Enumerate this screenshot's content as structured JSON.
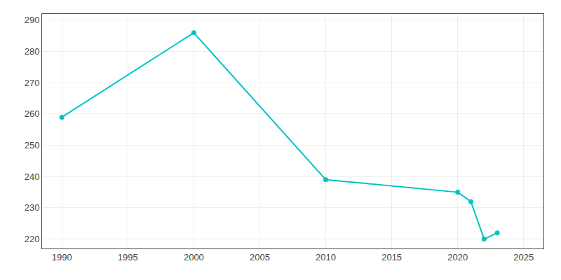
{
  "chart_data": {
    "type": "line",
    "x": [
      1990,
      2000,
      2010,
      2020,
      2021,
      2022,
      2023
    ],
    "values": [
      259,
      286,
      239,
      235,
      232,
      220,
      222
    ],
    "color": "#00C4C4",
    "marker": "circle",
    "xlim": [
      1988.5,
      2026.5
    ],
    "ylim": [
      217,
      292
    ],
    "xticks": [
      1990,
      1995,
      2000,
      2005,
      2010,
      2015,
      2020,
      2025
    ],
    "yticks": [
      220,
      230,
      240,
      250,
      260,
      270,
      280,
      290
    ],
    "grid": true
  }
}
